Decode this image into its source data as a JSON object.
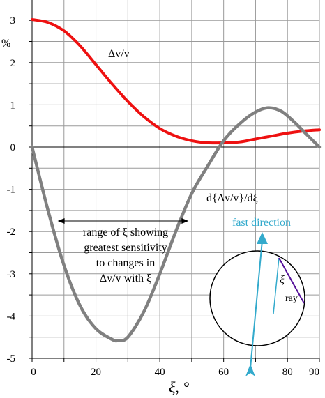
{
  "chart_data": {
    "type": "line",
    "title": "",
    "xlabel": "ξ, °",
    "ylabel": "%",
    "xlim": [
      0,
      90
    ],
    "ylim": [
      -5,
      3.5
    ],
    "x_ticks": [
      0,
      20,
      40,
      60,
      80,
      90
    ],
    "x_tick_labels": [
      "0",
      "20",
      "40",
      "60",
      "80",
      "90"
    ],
    "y_ticks": [
      3,
      2,
      1,
      0,
      -1,
      -2,
      -3,
      -4,
      -5
    ],
    "y_tick_labels": [
      "3",
      "2",
      "1",
      "0",
      "-1",
      "-2",
      "-3",
      "-4",
      "-5"
    ],
    "grid": true,
    "series": [
      {
        "name": "Δv/v",
        "color": "#ee1111",
        "x": [
          0,
          5,
          10,
          15,
          20,
          25,
          30,
          35,
          40,
          45,
          50,
          55,
          60,
          65,
          70,
          75,
          80,
          85,
          90
        ],
        "y": [
          3.02,
          2.95,
          2.75,
          2.4,
          1.95,
          1.5,
          1.08,
          0.72,
          0.44,
          0.26,
          0.15,
          0.1,
          0.1,
          0.12,
          0.19,
          0.26,
          0.33,
          0.38,
          0.41
        ]
      },
      {
        "name": "d{Δv/v}/dξ",
        "color": "#808080",
        "x": [
          0,
          5,
          10,
          15,
          20,
          25,
          27,
          30,
          35,
          40,
          45,
          50,
          55,
          60,
          65,
          70,
          74,
          78,
          82,
          86,
          90
        ],
        "y": [
          0,
          -1.5,
          -2.8,
          -3.75,
          -4.3,
          -4.55,
          -4.58,
          -4.5,
          -3.9,
          -3.0,
          -2.0,
          -1.1,
          -0.45,
          0.15,
          0.55,
          0.83,
          0.93,
          0.85,
          0.6,
          0.3,
          0.0
        ]
      }
    ],
    "annotations": {
      "range_label": [
        "range of ξ showing",
        "greatest sensitivity",
        "to changes in",
        "Δv/v  with ξ"
      ],
      "range_x": [
        8,
        49
      ],
      "range_y": -1.75,
      "inset_fast_direction": "fast direction",
      "inset_xi": "ξ",
      "inset_ray": "ray",
      "inset_color": "#33aacc",
      "ray_color": "#551199"
    }
  }
}
